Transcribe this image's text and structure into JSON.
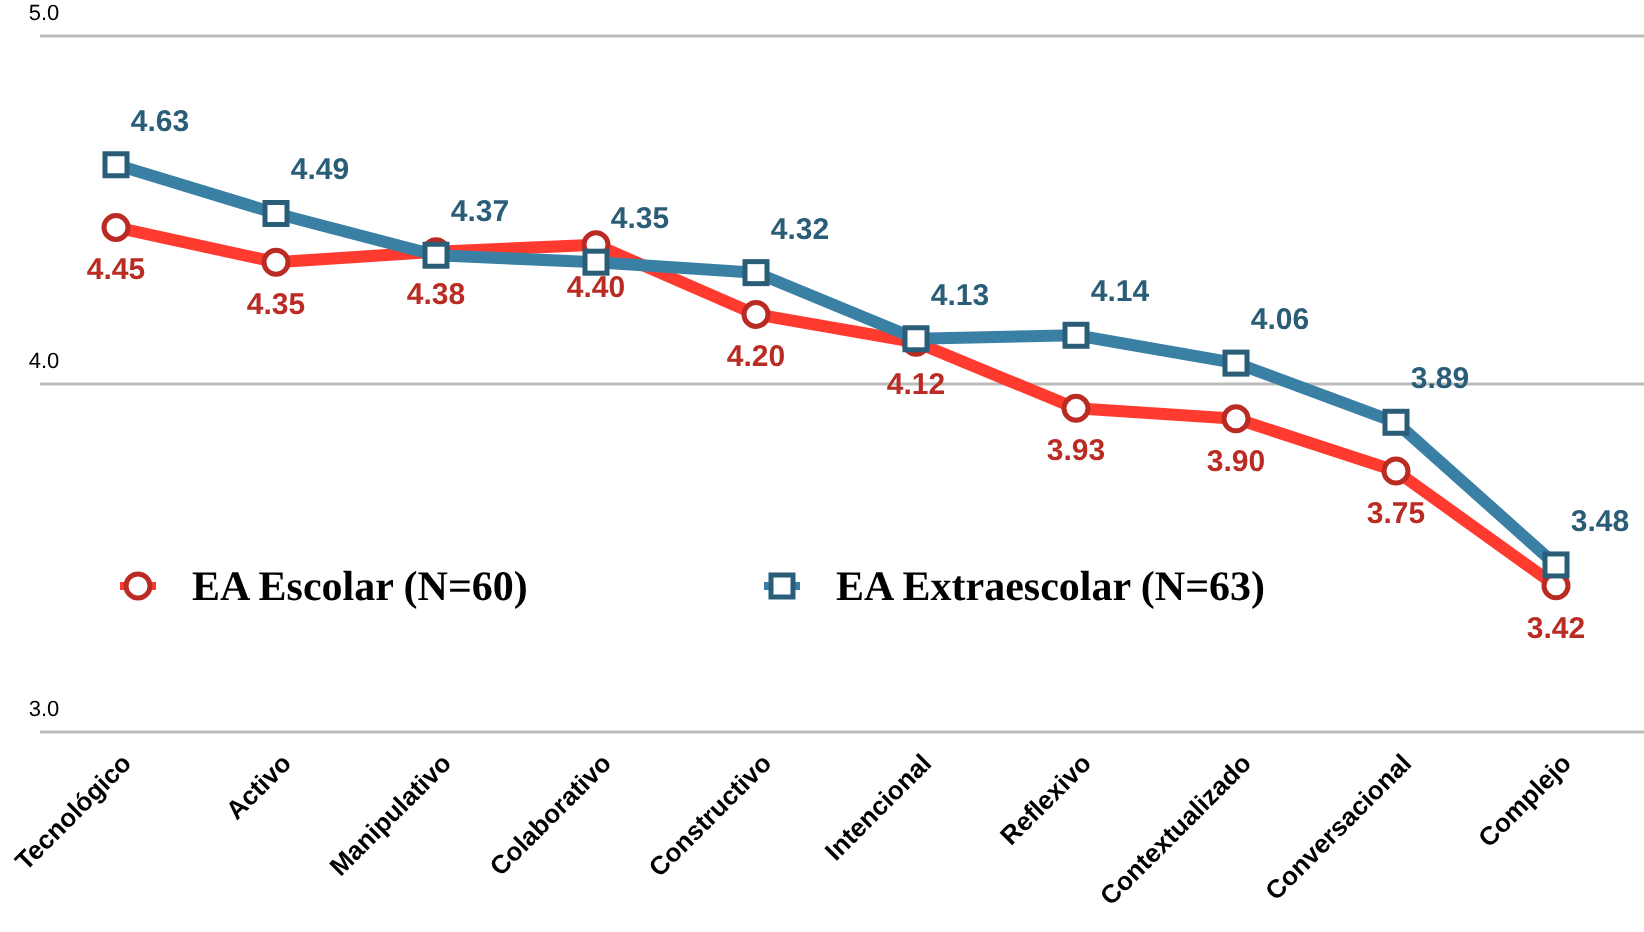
{
  "chart_data": {
    "type": "line",
    "categories": [
      "Tecnológico",
      "Activo",
      "Manipulativo",
      "Colaborativo",
      "Constructivo",
      "Intencional",
      "Reflexivo",
      "Contextualizado",
      "Conversacional",
      "Complejo"
    ],
    "series": [
      {
        "name": "EA Escolar (N=60)",
        "color": "#ff3b30",
        "marker": "circle",
        "values": [
          4.45,
          4.35,
          4.38,
          4.4,
          4.2,
          4.12,
          3.93,
          3.9,
          3.75,
          3.42
        ],
        "value_labels": [
          "4.45",
          "4.35",
          "4.38",
          "4.40",
          "4.20",
          "4.12",
          "3.93",
          "3.90",
          "3.75",
          "3.42"
        ]
      },
      {
        "name": "EA Extraescolar (N=63)",
        "color": "#3a80a4",
        "marker": "square",
        "values": [
          4.63,
          4.49,
          4.37,
          4.35,
          4.32,
          4.13,
          4.14,
          4.06,
          3.89,
          3.48
        ],
        "value_labels": [
          "4.63",
          "4.49",
          "4.37",
          "4.35",
          "4.32",
          "4.13",
          "4.14",
          "4.06",
          "3.89",
          "3.48"
        ]
      }
    ],
    "ylim": [
      3,
      5
    ],
    "yticks": [
      {
        "value": 3,
        "label": "3.0"
      },
      {
        "value": 4,
        "label": "4.0"
      },
      {
        "value": 5,
        "label": "5.0"
      }
    ],
    "grid": "y",
    "legend": "bottom left",
    "line_style": "solid"
  }
}
